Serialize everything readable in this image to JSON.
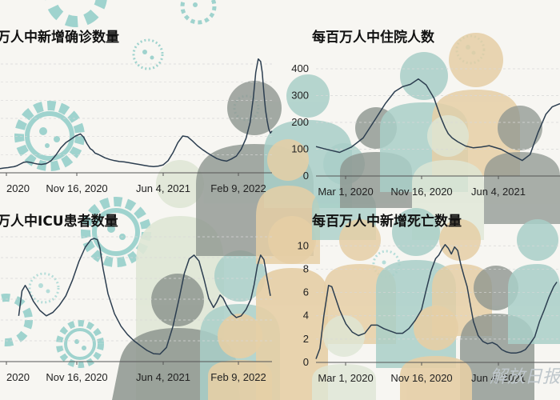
{
  "colors": {
    "background": "#f7f6f2",
    "virus": "#9fd3ce",
    "person_gray": "#8e9690",
    "person_sand": "#e6cfa6",
    "person_teal": "#a9cfc8",
    "person_light": "#dfe7d6",
    "line": "#2c3e50"
  },
  "watermark": "解放日报",
  "chart_data": [
    {
      "type": "line",
      "title": "万人中新增确诊数量",
      "x_ticks": [
        "2020",
        "Nov 16, 2020",
        "Jun 4, 2021",
        "Feb 9, 2022"
      ],
      "y_ticks": [],
      "ylim": [
        0,
        2600
      ],
      "x": [
        0,
        5,
        10,
        15,
        18,
        22,
        26,
        30,
        34,
        38,
        41,
        44,
        47,
        51,
        56,
        62,
        68,
        74,
        80,
        86,
        92,
        98,
        104,
        108,
        112,
        116,
        119,
        122,
        126,
        130,
        134,
        140,
        146,
        152,
        158,
        164,
        170,
        176,
        182,
        188,
        194,
        200,
        206,
        212,
        218,
        224,
        230,
        236,
        242,
        248,
        254,
        260,
        266,
        272,
        278,
        284,
        290,
        296,
        302,
        308,
        313,
        317,
        320,
        323,
        326,
        328,
        330,
        332,
        334,
        336,
        338,
        340
      ],
      "values": [
        110,
        100,
        115,
        125,
        135,
        145,
        170,
        210,
        250,
        260,
        255,
        240,
        225,
        210,
        200,
        220,
        290,
        430,
        600,
        720,
        800,
        880,
        930,
        850,
        700,
        580,
        540,
        470,
        440,
        400,
        360,
        320,
        290,
        270,
        260,
        240,
        220,
        200,
        180,
        160,
        150,
        160,
        190,
        290,
        480,
        720,
        880,
        860,
        760,
        650,
        560,
        480,
        410,
        340,
        300,
        280,
        330,
        400,
        560,
        820,
        1200,
        1800,
        2400,
        2720,
        2660,
        2400,
        1900,
        1500,
        1250,
        1050,
        950,
        1000
      ]
    },
    {
      "type": "line",
      "title": "每百万人中住院人数",
      "x_ticks": [
        "Mar 1, 2020",
        "Nov 16, 2020",
        "Jun 4, 2021"
      ],
      "y_ticks": [
        "0",
        "100",
        "200",
        "300",
        "400"
      ],
      "ylim": [
        0,
        400
      ],
      "x": [
        0,
        10,
        30,
        45,
        60,
        75,
        88,
        100,
        110,
        120,
        130,
        140,
        150,
        158,
        164,
        168,
        173,
        180,
        190,
        200,
        210,
        220,
        235,
        250,
        262,
        272,
        282,
        292,
        300,
        310
      ],
      "values": [
        110,
        102,
        88,
        108,
        142,
        210,
        270,
        315,
        333,
        342,
        362,
        340,
        290,
        222,
        180,
        158,
        142,
        128,
        112,
        105,
        108,
        113,
        100,
        76,
        58,
        80,
        162,
        230,
        258,
        270
      ]
    },
    {
      "type": "line",
      "title": "万人中ICU患者数量",
      "x_ticks": [
        "2020",
        "Nov 16, 2020",
        "Jun 4, 2021",
        "Feb 9, 2022"
      ],
      "y_ticks": [],
      "ylim": [
        0,
        30
      ],
      "x": [
        28,
        32,
        36,
        40,
        46,
        54,
        62,
        70,
        78,
        86,
        94,
        102,
        110,
        117,
        121,
        125,
        128,
        132,
        138,
        146,
        154,
        162,
        170,
        178,
        186,
        194,
        202,
        210,
        218,
        226,
        232,
        238,
        244,
        250,
        256,
        262,
        268,
        272,
        276,
        280,
        284,
        290,
        296,
        302,
        308,
        314,
        318,
        322,
        326,
        330,
        334,
        338
      ],
      "values": [
        11,
        17,
        18.3,
        17,
        14.5,
        12.3,
        11,
        11.8,
        13.5,
        15.8,
        19.5,
        24,
        27.5,
        29.3,
        29.6,
        29.3,
        27.3,
        22.3,
        16.3,
        11.5,
        8.5,
        6.5,
        5,
        3.8,
        2.7,
        1.9,
        1.8,
        3.4,
        8.5,
        15.5,
        21.2,
        24.7,
        25.6,
        24.2,
        20,
        15.2,
        13,
        14.3,
        16,
        15.2,
        13.5,
        11.6,
        10.6,
        11,
        12.5,
        15,
        18.5,
        23,
        25.6,
        24.5,
        20,
        15.8
      ]
    },
    {
      "type": "line",
      "title": "每百万人中新增死亡数量",
      "x_ticks": [
        "Mar 1, 2020",
        "Nov 16, 2020",
        "Jun 4, 2021"
      ],
      "y_ticks": [
        "0",
        "2",
        "4",
        "6",
        "8",
        "10"
      ],
      "ylim": [
        0,
        10.5
      ],
      "x": [
        0,
        5,
        10,
        16,
        20,
        25,
        30,
        38,
        46,
        54,
        62,
        70,
        78,
        86,
        94,
        102,
        110,
        118,
        126,
        134,
        140,
        146,
        152,
        156,
        160,
        164,
        168,
        172,
        176,
        180,
        184,
        188,
        192,
        196,
        200,
        206,
        212,
        218,
        224,
        230,
        236,
        242,
        248,
        254,
        260,
        266,
        272,
        278,
        284,
        290,
        296,
        302,
        306
      ],
      "values": [
        0.3,
        1.2,
        4,
        6.6,
        6.5,
        5.5,
        4.5,
        3.3,
        2.6,
        2.3,
        2.5,
        3.2,
        3.2,
        2.9,
        2.7,
        2.5,
        2.5,
        2.9,
        3.6,
        4.5,
        6.2,
        7.8,
        8.9,
        9.2,
        9.7,
        10.1,
        9.8,
        9.3,
        9.9,
        9.6,
        8.4,
        7.4,
        6.5,
        5,
        3.5,
        2.3,
        1.8,
        1.6,
        1.7,
        1.5,
        1.1,
        0.9,
        0.8,
        0.8,
        0.9,
        1.1,
        1.6,
        2.2,
        3.5,
        4.5,
        5.6,
        6.5,
        6.9
      ]
    }
  ]
}
